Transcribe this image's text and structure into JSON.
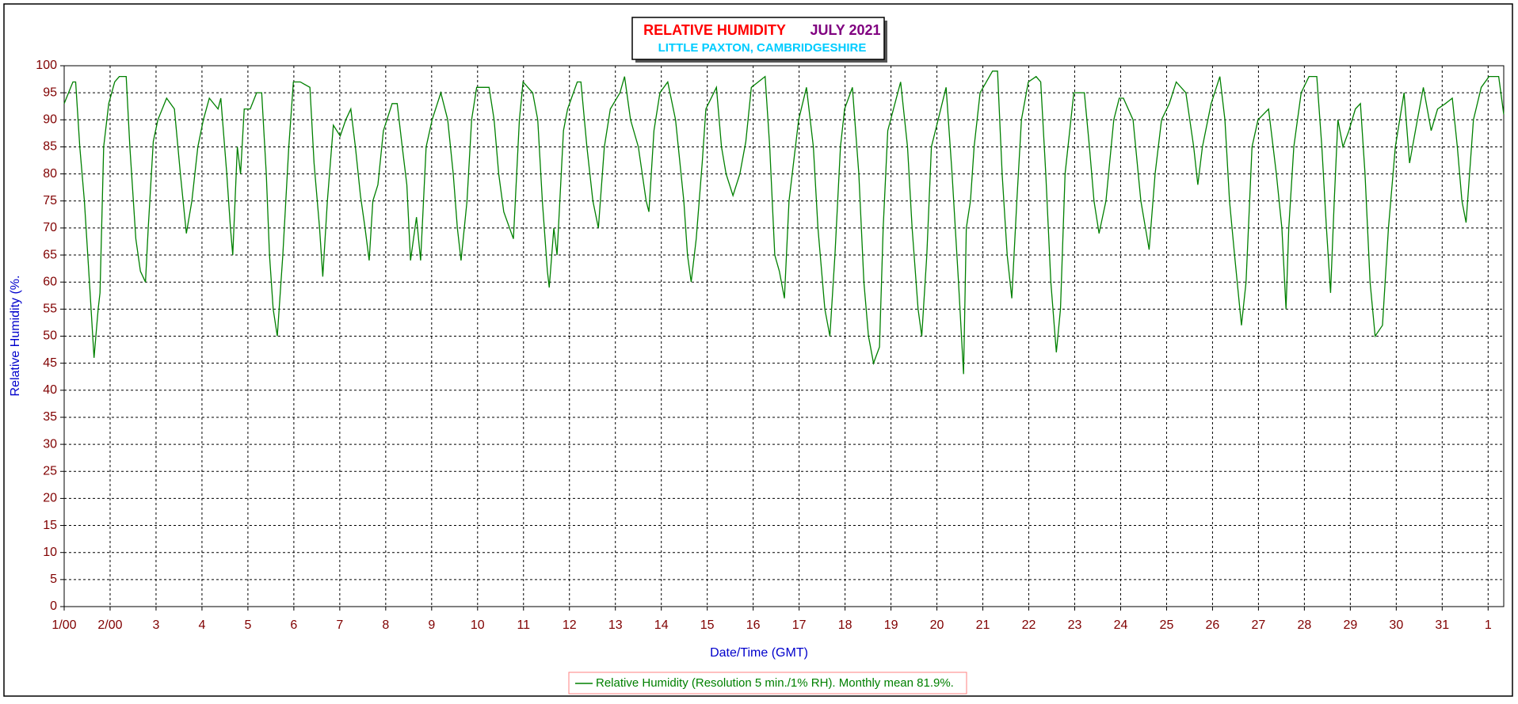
{
  "chart_data": {
    "type": "line",
    "title": "RELATIVE HUMIDITY",
    "title_date": "JULY 2021",
    "subtitle": "LITTLE PAXTON, CAMBRIDGESHIRE",
    "x_label": "Date/Time (GMT)",
    "y_label": "Relative Humidity (%.",
    "xlim": [
      1,
      32.34
    ],
    "ylim": [
      0,
      100
    ],
    "xticks": [
      {
        "value": 1,
        "label": "1/00"
      },
      {
        "value": 2,
        "label": "2/00"
      },
      3,
      4,
      5,
      6,
      7,
      8,
      9,
      10,
      11,
      12,
      13,
      14,
      15,
      16,
      17,
      18,
      19,
      20,
      21,
      22,
      23,
      24,
      25,
      26,
      27,
      28,
      29,
      30,
      31,
      {
        "value": 32,
        "label": "1"
      }
    ],
    "yticks": [
      0,
      5,
      10,
      15,
      20,
      25,
      30,
      35,
      40,
      45,
      50,
      55,
      60,
      65,
      70,
      75,
      80,
      85,
      90,
      95,
      100
    ],
    "grid": true,
    "x": [
      1.0,
      1.19,
      1.25,
      1.34,
      1.44,
      1.55,
      1.65,
      1.74,
      1.78,
      1.86,
      1.97,
      2.1,
      2.2,
      2.35,
      2.43,
      2.56,
      2.66,
      2.77,
      2.83,
      2.94,
      3.04,
      3.23,
      3.4,
      3.53,
      3.66,
      3.78,
      3.91,
      4.03,
      4.16,
      4.35,
      4.41,
      4.54,
      4.62,
      4.67,
      4.77,
      4.84,
      4.92,
      5.05,
      5.19,
      5.3,
      5.4,
      5.47,
      5.55,
      5.64,
      5.76,
      5.89,
      5.99,
      6.14,
      6.35,
      6.44,
      6.56,
      6.63,
      6.73,
      6.86,
      7.01,
      7.13,
      7.24,
      7.34,
      7.45,
      7.55,
      7.64,
      7.72,
      7.83,
      7.95,
      8.14,
      8.25,
      8.36,
      8.46,
      8.54,
      8.67,
      8.76,
      8.88,
      9.01,
      9.2,
      9.35,
      9.47,
      9.56,
      9.64,
      9.77,
      9.87,
      9.98,
      10.25,
      10.36,
      10.46,
      10.57,
      10.78,
      10.91,
      10.99,
      11.2,
      11.31,
      11.41,
      11.52,
      11.56,
      11.66,
      11.73,
      11.87,
      11.96,
      12.17,
      12.25,
      12.38,
      12.51,
      12.63,
      12.76,
      12.89,
      13.1,
      13.2,
      13.33,
      13.5,
      13.67,
      13.73,
      13.84,
      13.97,
      14.14,
      14.31,
      14.49,
      14.57,
      14.65,
      14.76,
      14.89,
      14.97,
      15.2,
      15.31,
      15.41,
      15.56,
      15.71,
      15.84,
      15.96,
      16.26,
      16.36,
      16.47,
      16.57,
      16.68,
      16.78,
      16.99,
      17.16,
      17.31,
      17.41,
      17.56,
      17.67,
      17.78,
      17.9,
      17.99,
      18.16,
      18.3,
      18.41,
      18.51,
      18.62,
      18.75,
      18.83,
      18.93,
      19.21,
      19.36,
      19.46,
      19.59,
      19.67,
      19.78,
      19.88,
      20.2,
      20.33,
      20.47,
      20.58,
      20.64,
      20.73,
      20.81,
      20.94,
      21.21,
      21.32,
      21.42,
      21.53,
      21.63,
      21.74,
      21.84,
      21.99,
      22.16,
      22.26,
      22.37,
      22.48,
      22.6,
      22.69,
      22.79,
      22.98,
      23.21,
      23.32,
      23.42,
      23.53,
      23.68,
      23.85,
      23.97,
      24.06,
      24.27,
      24.44,
      24.58,
      24.62,
      24.75,
      24.89,
      25.06,
      25.21,
      25.42,
      25.59,
      25.68,
      25.78,
      25.97,
      26.16,
      26.27,
      26.37,
      26.48,
      26.63,
      26.73,
      26.86,
      26.99,
      27.22,
      27.39,
      27.51,
      27.6,
      27.66,
      27.77,
      27.93,
      28.1,
      28.27,
      28.38,
      28.48,
      28.57,
      28.65,
      28.73,
      28.84,
      28.97,
      29.11,
      29.22,
      29.32,
      29.43,
      29.54,
      29.7,
      29.83,
      29.98,
      30.17,
      30.29,
      30.46,
      30.59,
      30.76,
      30.9,
      31.07,
      31.22,
      31.33,
      31.43,
      31.52,
      31.68,
      31.85,
      32.02,
      32.23,
      32.34
    ],
    "series": [
      {
        "name": "Relative Humidity (Resolution 5 min./1% RH). Monthly mean 81.9%.",
        "color": "#008000",
        "values": [
          93,
          97,
          97,
          85,
          75,
          60,
          46,
          55,
          58,
          85,
          93,
          97,
          98,
          98,
          85,
          68,
          62,
          60,
          70,
          86,
          90,
          94,
          92,
          80,
          69,
          75,
          85,
          90,
          94,
          92,
          94,
          80,
          70,
          65,
          85,
          80,
          92,
          92,
          95,
          95,
          80,
          65,
          55,
          50,
          65,
          85,
          97,
          97,
          96,
          82,
          70,
          61,
          75,
          89,
          87,
          90,
          92,
          85,
          76,
          70,
          64,
          75,
          78,
          88,
          93,
          93,
          85,
          78,
          64,
          72,
          64,
          85,
          90,
          95,
          90,
          80,
          70,
          64,
          75,
          90,
          96,
          96,
          90,
          80,
          73,
          68,
          90,
          97,
          95,
          90,
          75,
          62,
          59,
          70,
          65,
          88,
          92,
          97,
          97,
          85,
          75,
          70,
          85,
          92,
          95,
          98,
          90,
          85,
          75,
          73,
          88,
          95,
          97,
          90,
          75,
          65,
          60,
          68,
          82,
          92,
          96,
          85,
          80,
          76,
          80,
          86,
          96,
          98,
          85,
          65,
          62,
          57,
          75,
          90,
          96,
          85,
          70,
          55,
          50,
          65,
          85,
          92,
          96,
          80,
          60,
          50,
          45,
          48,
          70,
          88,
          97,
          85,
          70,
          55,
          50,
          65,
          85,
          96,
          80,
          60,
          43,
          70,
          75,
          85,
          95,
          99,
          99,
          80,
          65,
          57,
          75,
          90,
          97,
          98,
          97,
          80,
          60,
          47,
          55,
          80,
          95,
          95,
          85,
          75,
          69,
          75,
          90,
          94,
          94,
          90,
          75,
          68,
          66,
          80,
          90,
          93,
          97,
          95,
          85,
          78,
          85,
          93,
          98,
          90,
          75,
          65,
          52,
          60,
          85,
          90,
          92,
          80,
          70,
          55,
          70,
          85,
          95,
          98,
          98,
          85,
          70,
          58,
          75,
          90,
          85,
          88,
          92,
          93,
          80,
          60,
          50,
          52,
          70,
          85,
          95,
          82,
          90,
          96,
          88,
          92,
          93,
          94,
          85,
          75,
          71,
          90,
          96,
          98,
          98,
          91
        ]
      }
    ]
  }
}
